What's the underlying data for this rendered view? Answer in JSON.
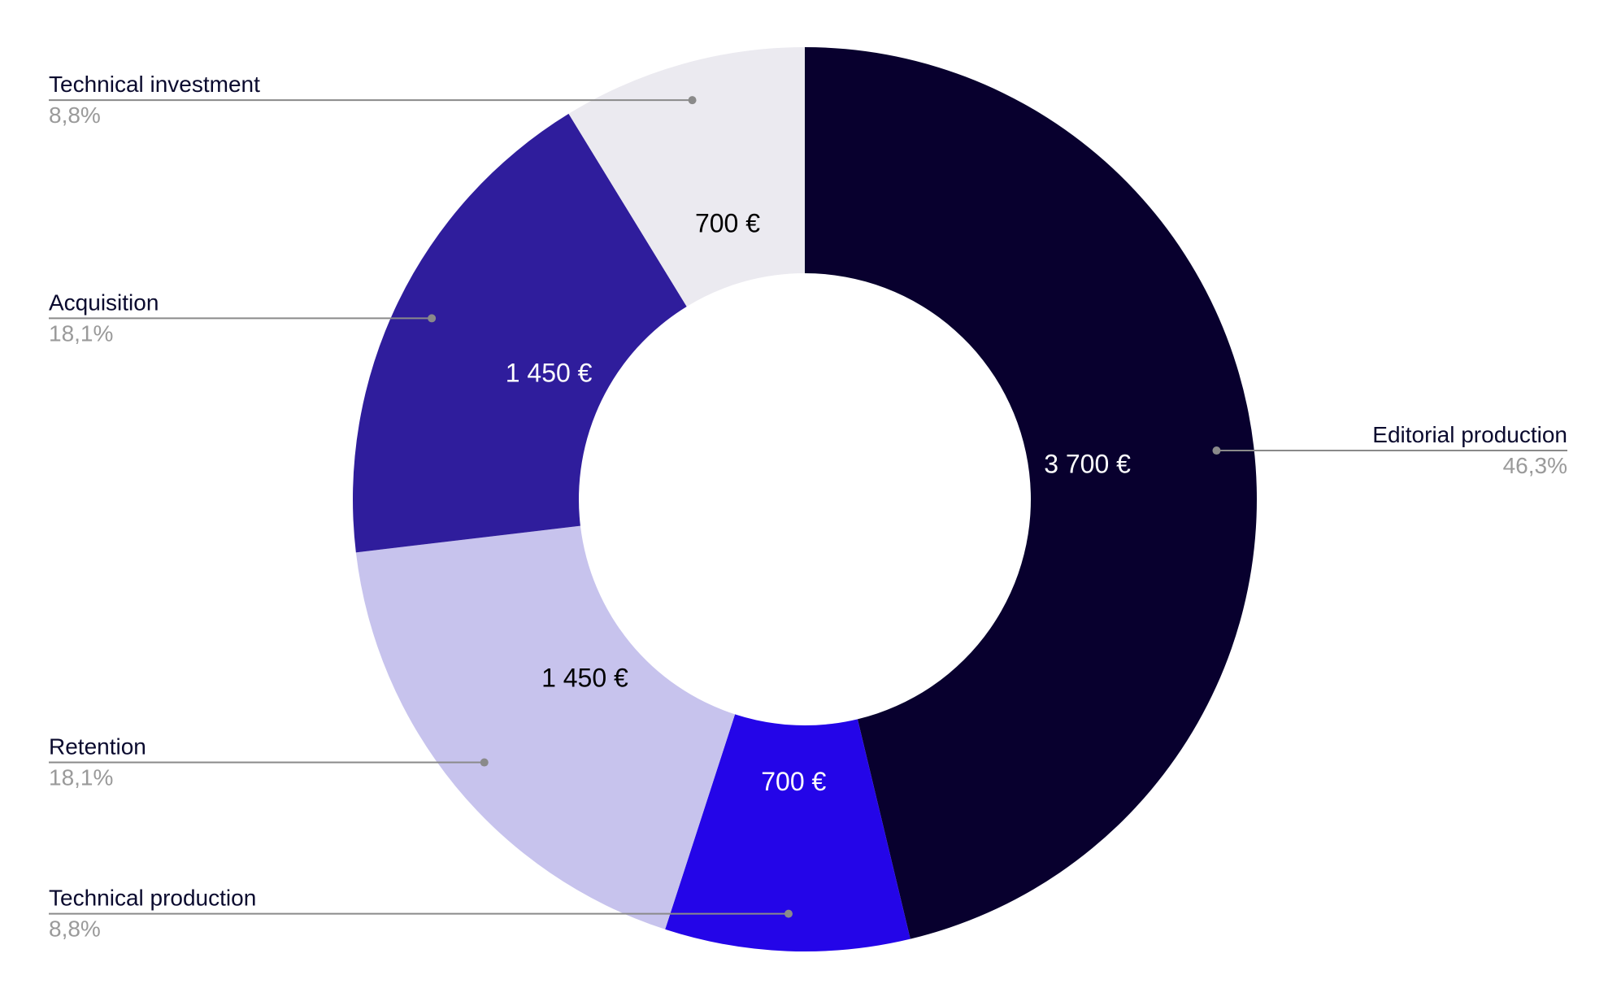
{
  "chart_data": {
    "type": "pie",
    "donut": true,
    "title": "",
    "slices": [
      {
        "label": "Editorial production",
        "value": 3700,
        "value_label": "3 700 €",
        "percent_label": "46,3%",
        "color": "#08002e",
        "text_color": "#ffffff",
        "label_side": "right"
      },
      {
        "label": "Technical production",
        "value": 700,
        "value_label": "700 €",
        "percent_label": "8,8%",
        "color": "#2405e8",
        "text_color": "#ffffff",
        "label_side": "left"
      },
      {
        "label": "Retention",
        "value": 1450,
        "value_label": "1 450 €",
        "percent_label": "18,1%",
        "color": "#c7c3ed",
        "text_color": "#000000",
        "label_side": "left"
      },
      {
        "label": "Acquisition",
        "value": 1450,
        "value_label": "1 450 €",
        "percent_label": "18,1%",
        "color": "#2f1d9c",
        "text_color": "#ffffff",
        "label_side": "left"
      },
      {
        "label": "Technical investment",
        "value": 700,
        "value_label": "700 €",
        "percent_label": "8,8%",
        "color": "#ebeaf0",
        "text_color": "#000000",
        "label_side": "left"
      }
    ],
    "start_angle_deg": 0,
    "direction": "clockwise",
    "legend": "callouts",
    "colors": {
      "leader_line": "#8a8a8a",
      "category_text": "#0a0a2e",
      "percent_text": "#9a9a9a"
    }
  }
}
